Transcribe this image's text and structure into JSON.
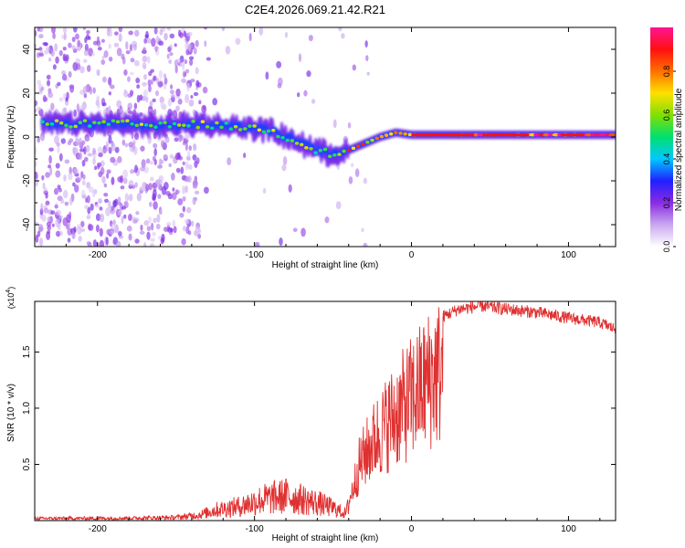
{
  "title": "C2E4.2026.069.21.42.R21",
  "chart_data": [
    {
      "type": "heatmap",
      "xlabel": "Height of straight line (km)",
      "ylabel": "Frequency (Hz)",
      "xlim": [
        -240,
        130
      ],
      "ylim": [
        -50,
        50
      ],
      "x_ticks": [
        -200,
        -100,
        0,
        100
      ],
      "x_tick_labels": [
        "-200",
        "-100",
        "0",
        "100"
      ],
      "y_ticks": [
        -40,
        -20,
        0,
        20,
        40
      ],
      "y_tick_labels": [
        "-40",
        "-20",
        "0",
        "20",
        "40"
      ],
      "ridge": {
        "x": [
          -220,
          -200,
          -180,
          -160,
          -140,
          -120,
          -100,
          -90,
          -80,
          -70,
          -60,
          -50,
          -40,
          -30,
          -20,
          -10,
          0,
          20,
          40,
          60,
          80,
          100,
          120,
          130
        ],
        "freq_hz": [
          6,
          6,
          6,
          5,
          6,
          5,
          4,
          3,
          0,
          -3,
          -6,
          -8,
          -6,
          -3,
          0,
          2,
          1,
          1,
          1,
          1,
          1,
          1,
          1,
          1
        ]
      },
      "colorbar": {
        "label": "Normalized spectral amplitude",
        "range": [
          0.0,
          1.0
        ],
        "ticks": [
          0.0,
          0.2,
          0.4,
          0.6,
          0.8
        ],
        "tick_labels": [
          "0.0",
          "0.2",
          "0.4",
          "0.6",
          "0.8"
        ],
        "colors": [
          "#ffffff",
          "#c9a8f0",
          "#8a2be2",
          "#2020ff",
          "#00c8ff",
          "#00e070",
          "#80e000",
          "#ffe000",
          "#ff7000",
          "#ff1010",
          "#ff1493"
        ]
      }
    },
    {
      "type": "line",
      "xlabel": "Height of straight line (km)",
      "ylabel": "SNR (10 * v/v)",
      "scale_note": "(x10",
      "scale_exp": "4",
      "scale_close": ")",
      "xlim": [
        -240,
        130
      ],
      "ylim": [
        0,
        19500
      ],
      "x_ticks": [
        -200,
        -100,
        0,
        100
      ],
      "x_tick_labels": [
        "-200",
        "-100",
        "0",
        "100"
      ],
      "y_ticks": [
        5000,
        10000,
        15000
      ],
      "y_tick_labels": [
        "0.5",
        "1.0",
        "1.5"
      ],
      "line_color": "#e03030",
      "envelope": {
        "x": [
          -240,
          -180,
          -150,
          -135,
          -125,
          -110,
          -95,
          -80,
          -70,
          -60,
          -50,
          -42,
          -38,
          -33,
          -25,
          -15,
          -5,
          5,
          15,
          30,
          45,
          60,
          80,
          100,
          120,
          130
        ],
        "snr": [
          300,
          350,
          450,
          800,
          1500,
          2000,
          3000,
          3500,
          3000,
          2500,
          1800,
          1000,
          3500,
          7000,
          9500,
          12000,
          14000,
          16000,
          18000,
          19000,
          19300,
          19000,
          18700,
          18200,
          17800,
          17200
        ]
      }
    }
  ]
}
